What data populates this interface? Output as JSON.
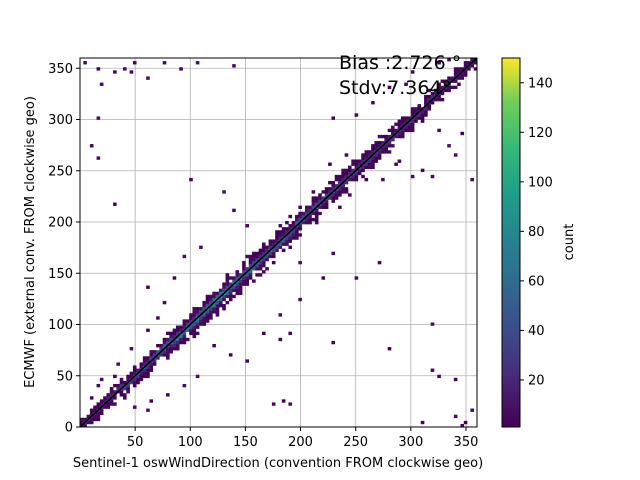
{
  "chart_data": {
    "type": "heatmap",
    "xlabel": "Sentinel-1 oswWindDirection (convention FROM clockwise geo)",
    "ylabel": "ECMWF (external conv. FROM clockwise geo)",
    "xlim": [
      0,
      360
    ],
    "ylim": [
      0,
      360
    ],
    "xticks": [
      50,
      100,
      150,
      200,
      250,
      300,
      350
    ],
    "yticks": [
      0,
      50,
      100,
      150,
      200,
      250,
      300,
      350
    ],
    "grid": true,
    "annotations": {
      "bias": "Bias :2.726 °",
      "stdv": "Stdv:7.364°"
    },
    "reference_line": {
      "x": [
        0,
        360
      ],
      "y": [
        0,
        360
      ]
    },
    "bin_size": 3,
    "colorbar": {
      "label": "count",
      "min": 1,
      "max": 150,
      "ticks": [
        20,
        40,
        60,
        80,
        100,
        120,
        140
      ],
      "colormap": "viridis"
    },
    "diagonal_band": {
      "description_values": "count along diagonal, by x (deg)",
      "x": [
        0,
        30,
        60,
        90,
        120,
        150,
        180,
        210,
        240,
        270,
        300,
        330,
        360
      ],
      "peak_count": [
        12,
        25,
        40,
        60,
        70,
        55,
        45,
        40,
        35,
        30,
        25,
        20,
        10
      ],
      "spread_deg": [
        8,
        10,
        12,
        14,
        15,
        15,
        14,
        13,
        12,
        12,
        11,
        10,
        8
      ]
    },
    "scatter_bins": [
      [
        5,
        355
      ],
      [
        15,
        350
      ],
      [
        20,
        335
      ],
      [
        30,
        345
      ],
      [
        40,
        350
      ],
      [
        45,
        345
      ],
      [
        50,
        355
      ],
      [
        60,
        340
      ],
      [
        75,
        355
      ],
      [
        90,
        350
      ],
      [
        105,
        355
      ],
      [
        140,
        351
      ],
      [
        10,
        275
      ],
      [
        15,
        263
      ],
      [
        15,
        300
      ],
      [
        30,
        218
      ],
      [
        100,
        240
      ],
      [
        60,
        135
      ],
      [
        190,
        92
      ],
      [
        180,
        85
      ],
      [
        230,
        82
      ],
      [
        280,
        75
      ],
      [
        320,
        100
      ],
      [
        185,
        25
      ],
      [
        175,
        22
      ],
      [
        190,
        22
      ],
      [
        340,
        45
      ],
      [
        320,
        55
      ],
      [
        325,
        48
      ],
      [
        310,
        5
      ],
      [
        340,
        10
      ],
      [
        355,
        15
      ],
      [
        345,
        2
      ],
      [
        350,
        5
      ],
      [
        300,
        245
      ],
      [
        290,
        260
      ],
      [
        310,
        250
      ],
      [
        320,
        245
      ],
      [
        340,
        265
      ],
      [
        355,
        240
      ],
      [
        335,
        275
      ],
      [
        325,
        290
      ],
      [
        345,
        285
      ],
      [
        230,
        170
      ],
      [
        250,
        145
      ],
      [
        270,
        160
      ],
      [
        220,
        145
      ],
      [
        200,
        160
      ],
      [
        165,
        175
      ],
      [
        150,
        195
      ],
      [
        140,
        210
      ],
      [
        130,
        230
      ],
      [
        110,
        175
      ],
      [
        95,
        165
      ],
      [
        85,
        145
      ],
      [
        75,
        120
      ],
      [
        70,
        105
      ],
      [
        60,
        95
      ],
      [
        45,
        75
      ],
      [
        35,
        60
      ],
      [
        30,
        48
      ],
      [
        20,
        45
      ],
      [
        15,
        40
      ],
      [
        10,
        28
      ],
      [
        50,
        20
      ],
      [
        60,
        15
      ],
      [
        65,
        25
      ],
      [
        80,
        30
      ],
      [
        95,
        40
      ],
      [
        105,
        50
      ],
      [
        120,
        80
      ],
      [
        135,
        70
      ],
      [
        150,
        65
      ],
      [
        165,
        90
      ],
      [
        180,
        110
      ],
      [
        200,
        125
      ],
      [
        215,
        200
      ],
      [
        235,
        215
      ],
      [
        245,
        225
      ],
      [
        260,
        240
      ],
      [
        275,
        240
      ],
      [
        285,
        255
      ],
      [
        240,
        265
      ],
      [
        225,
        255
      ],
      [
        210,
        230
      ],
      [
        200,
        215
      ],
      [
        190,
        205
      ],
      [
        180,
        195
      ],
      [
        230,
        300
      ],
      [
        250,
        305
      ],
      [
        265,
        315
      ],
      [
        280,
        330
      ],
      [
        295,
        335
      ],
      [
        300,
        345
      ],
      [
        345,
        360
      ],
      [
        355,
        358
      ],
      [
        335,
        358
      ],
      [
        325,
        355
      ]
    ]
  }
}
